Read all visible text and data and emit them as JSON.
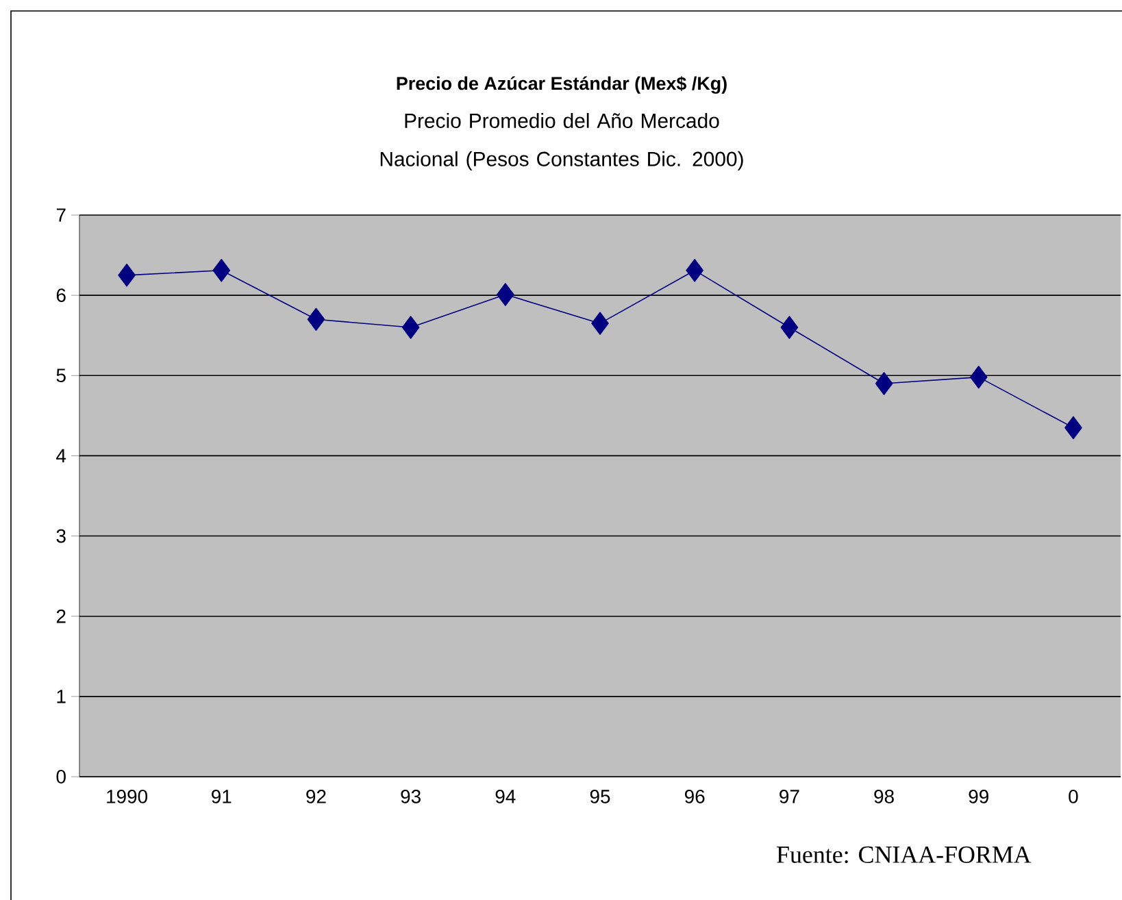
{
  "chart_data": {
    "type": "line",
    "title": "Precio  de Azúcar Estándar (Mex$ /Kg)",
    "subtitle": "Precio Promedio del Año Mercado Nacional (Pesos Constantes Dic. 2000)",
    "categories": [
      "1990",
      "91",
      "92",
      "93",
      "94",
      "95",
      "96",
      "97",
      "98",
      "99",
      "0"
    ],
    "series": [
      {
        "color": "#000080",
        "values": [
          6.25,
          6.31,
          5.7,
          5.6,
          6.01,
          5.65,
          6.31,
          5.6,
          4.9,
          4.98,
          4.35
        ]
      }
    ],
    "ylim": [
      0,
      7
    ],
    "yticks": [
      0,
      1,
      2,
      3,
      4,
      5,
      6,
      7
    ],
    "grid": "y",
    "marker": "diamond",
    "line_style": "solid",
    "annotations": [
      "Fuente: CNIAA-FORMA"
    ]
  }
}
